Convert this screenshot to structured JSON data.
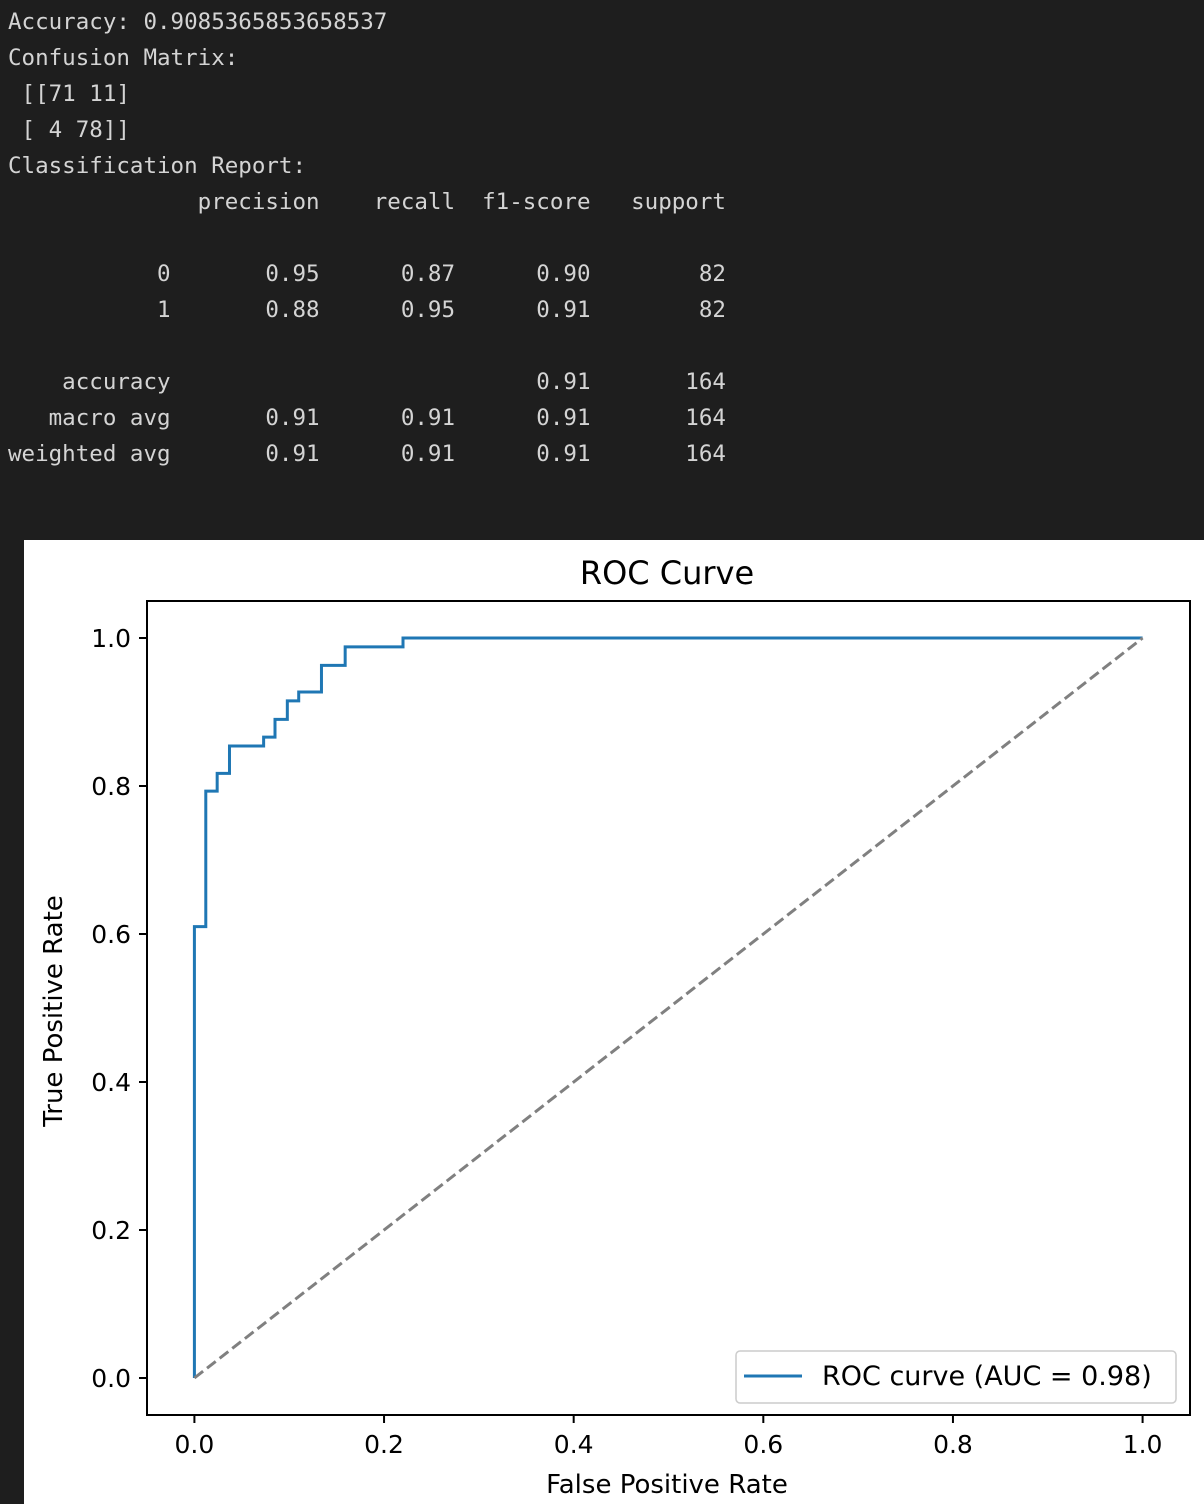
{
  "console": {
    "accuracy_line": "Accuracy: 0.9085365853658537",
    "confusion_label": "Confusion Matrix:",
    "confusion_rows": [
      " [[71 11]",
      " [ 4 78]]"
    ],
    "report_label": "Classification Report:",
    "report_header": "              precision    recall  f1-score   support",
    "report_rows": [
      "",
      "           0       0.95      0.87      0.90        82",
      "           1       0.88      0.95      0.91        82",
      "",
      "    accuracy                           0.91       164",
      "   macro avg       0.91      0.91      0.91       164",
      "weighted avg       0.91      0.91      0.91       164"
    ]
  },
  "chart_data": {
    "type": "line",
    "title": "ROC Curve",
    "xlabel": "False Positive Rate",
    "ylabel": "True Positive Rate",
    "xlim": [
      -0.05,
      1.05
    ],
    "ylim": [
      -0.05,
      1.05
    ],
    "xticks": [
      "0.0",
      "0.2",
      "0.4",
      "0.6",
      "0.8",
      "1.0"
    ],
    "yticks": [
      "0.0",
      "0.2",
      "0.4",
      "0.6",
      "0.8",
      "1.0"
    ],
    "grid": false,
    "legend_position": "lower right",
    "series": [
      {
        "name": "ROC curve (AUC = 0.98)",
        "color": "#1f77b4",
        "style": "solid",
        "x": [
          0.0,
          0.0,
          0.012,
          0.012,
          0.024,
          0.024,
          0.037,
          0.037,
          0.073,
          0.073,
          0.085,
          0.085,
          0.098,
          0.098,
          0.11,
          0.11,
          0.134,
          0.134,
          0.159,
          0.159,
          0.22,
          0.22,
          1.0
        ],
        "y": [
          0.0,
          0.61,
          0.61,
          0.793,
          0.793,
          0.817,
          0.817,
          0.854,
          0.854,
          0.866,
          0.866,
          0.89,
          0.89,
          0.915,
          0.915,
          0.927,
          0.927,
          0.963,
          0.963,
          0.988,
          0.988,
          1.0,
          1.0
        ]
      },
      {
        "name": "",
        "color": "#808080",
        "style": "dashed",
        "x": [
          0.0,
          1.0
        ],
        "y": [
          0.0,
          1.0
        ]
      }
    ]
  }
}
